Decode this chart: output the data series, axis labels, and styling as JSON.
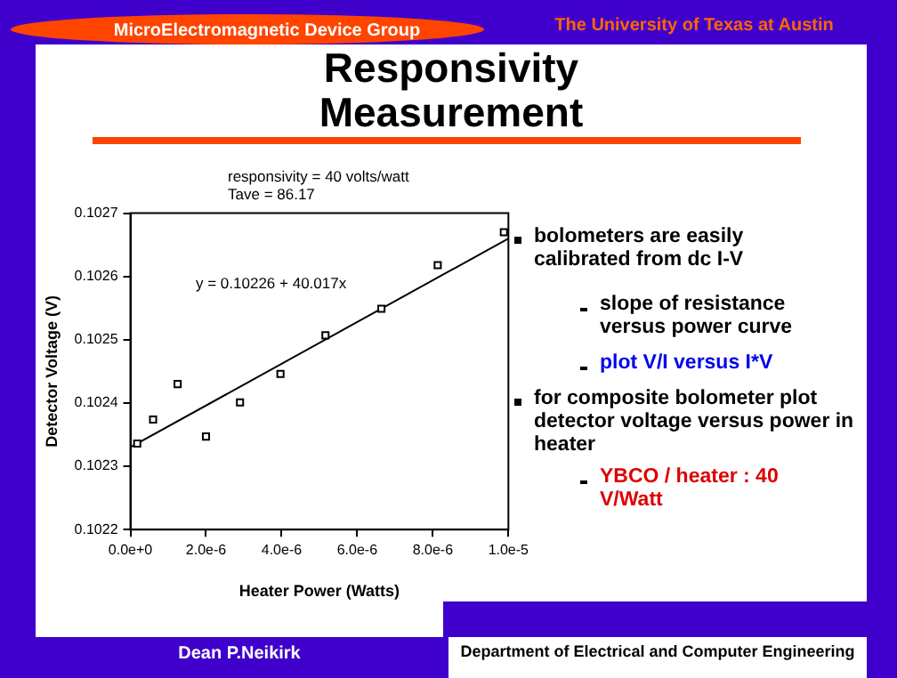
{
  "chart_data": {
    "type": "scatter",
    "title": "Responsivity Measurement",
    "xlabel": "Heater Power (Watts)",
    "ylabel": "Detector Voltage (V)",
    "annotations": [
      "MicroElectromagnetic Device Group",
      "The University of Texas at Austin",
      "responsivity = 40 volts/watt",
      "Tave = 86.17",
      "y = 0.10226 + 40.017x",
      "bolometers are easily calibrated from dc I-V",
      "slope of resistance versus power curve",
      "plot V/I versus I*V",
      "for composite bolometer plot detector voltage versus power in heater",
      "YBCO / heater : 40 V/Watt",
      "Dean P.Neikirk",
      "Department of Electrical and Computer Engineering"
    ],
    "series": [
      {
        "type": "scatter",
        "color": "#000000",
        "marker": "square",
        "x": [
          1.8e-07,
          6e-07,
          1.25e-06,
          2e-06,
          2.9e-06,
          3.97e-06,
          5.16e-06,
          6.64e-06,
          8.13e-06,
          9.88e-06
        ],
        "values": [
          0.102336,
          0.102374,
          0.10243,
          0.102347,
          0.102401,
          0.102446,
          0.102507,
          0.102549,
          0.102618,
          0.10267
        ]
      },
      {
        "type": "line",
        "color": "#000000",
        "x": [
          0,
          1e-05
        ],
        "values": [
          0.10233,
          0.10266
        ]
      }
    ],
    "xlim": [
      0,
      1e-05
    ],
    "xticks": [
      {
        "value": 0,
        "label": "0.0e+0"
      },
      {
        "value": 2e-06,
        "label": "2.0e-6"
      },
      {
        "value": 4e-06,
        "label": "4.0e-6"
      },
      {
        "value": 6e-06,
        "label": "6.0e-6"
      },
      {
        "value": 8e-06,
        "label": "8.0e-6"
      },
      {
        "value": 1e-05,
        "label": "1.0e-5"
      }
    ],
    "ylim": [
      0.1022,
      0.1027
    ],
    "yticks": [
      {
        "value": 0.1022,
        "label": "0.1022"
      },
      {
        "value": 0.1023,
        "label": "0.1023"
      },
      {
        "value": 0.1024,
        "label": "0.1024"
      },
      {
        "value": 0.1025,
        "label": "0.1025"
      },
      {
        "value": 0.1026,
        "label": "0.1026"
      },
      {
        "value": 0.1027,
        "label": "0.1027"
      }
    ],
    "grid": false,
    "legend": false
  }
}
